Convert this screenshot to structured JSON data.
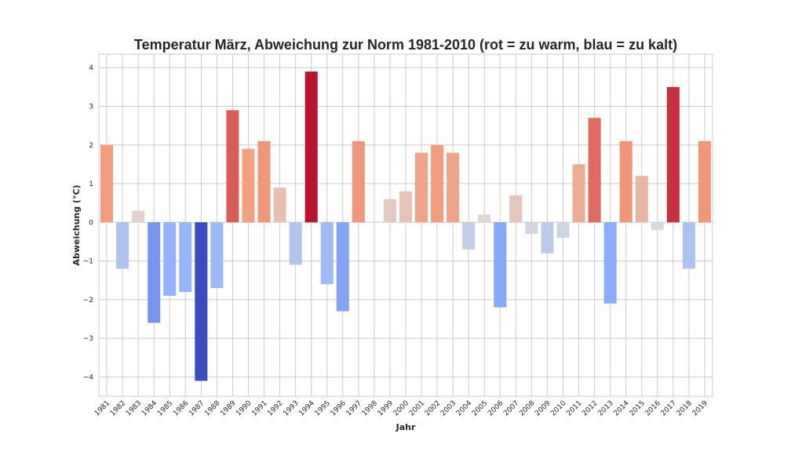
{
  "chart_data": {
    "type": "bar",
    "title": "Temperatur März, Abweichung zur Norm 1981-2010 (rot = zu warm, blau = zu kalt)",
    "xlabel": "Jahr",
    "ylabel": "Abweichung (°C)",
    "ylim": [
      -4.5,
      4.35
    ],
    "yticks": [
      -4,
      -3,
      -2,
      -1,
      0,
      1,
      2,
      3,
      4
    ],
    "grid": true,
    "categories": [
      "1981",
      "1982",
      "1983",
      "1984",
      "1985",
      "1986",
      "1987",
      "1988",
      "1989",
      "1990",
      "1991",
      "1992",
      "1993",
      "1994",
      "1995",
      "1996",
      "1997",
      "1998",
      "1999",
      "2000",
      "2001",
      "2002",
      "2003",
      "2004",
      "2005",
      "2006",
      "2007",
      "2008",
      "2009",
      "2010",
      "2011",
      "2012",
      "2013",
      "2014",
      "2015",
      "2016",
      "2017",
      "2018",
      "2019"
    ],
    "values": [
      2.0,
      -1.2,
      0.3,
      -2.6,
      -1.9,
      -1.8,
      -4.1,
      -1.7,
      2.9,
      1.9,
      2.1,
      0.9,
      -1.1,
      3.9,
      -1.6,
      -2.3,
      2.1,
      0.0,
      0.6,
      0.8,
      1.8,
      2.0,
      1.8,
      -0.7,
      0.2,
      -2.2,
      0.7,
      -0.3,
      -0.8,
      -0.4,
      1.5,
      2.7,
      -2.1,
      2.1,
      1.2,
      -0.2,
      3.5,
      -1.2,
      2.1
    ],
    "colormap": "coolwarm",
    "color_range": [
      -4.1,
      4.1
    ]
  }
}
